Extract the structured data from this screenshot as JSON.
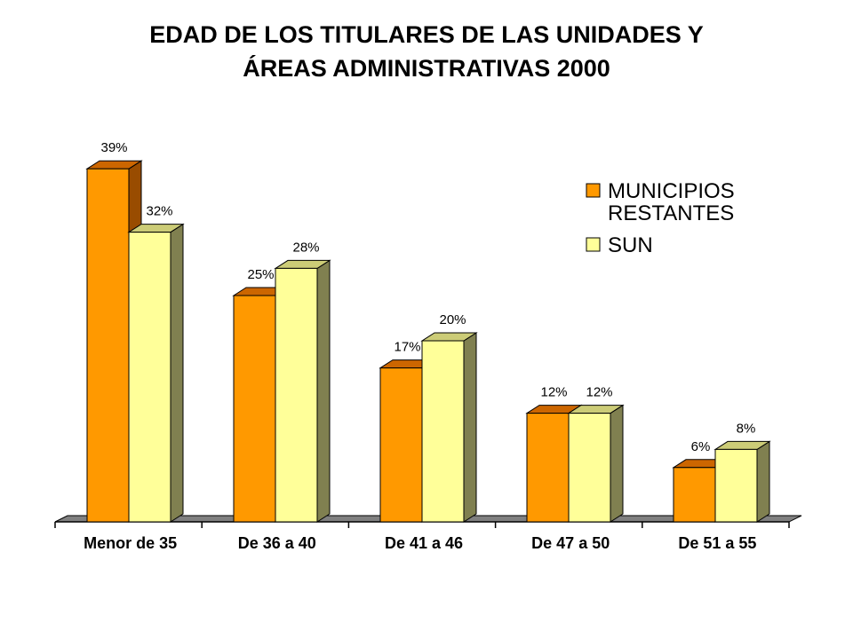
{
  "chart_data": {
    "type": "bar",
    "title_lines": [
      "EDAD DE LOS TITULARES DE LAS UNIDADES Y",
      "ÁREAS ADMINISTRATIVAS 2000"
    ],
    "categories": [
      "Menor de 35",
      "De 36 a 40",
      "De 41 a 46",
      "De 47 a 50",
      "De 51 a 55"
    ],
    "series": [
      {
        "name_lines": [
          "MUNICIPIOS",
          "RESTANTES"
        ],
        "values": [
          39,
          25,
          17,
          12,
          6
        ],
        "labels": [
          "39%",
          "25%",
          "17%",
          "12%",
          "6%"
        ],
        "color": "#FF9900",
        "top_color": "#CC6600",
        "side_color": "#994C00"
      },
      {
        "name_lines": [
          "SUN"
        ],
        "values": [
          32,
          28,
          20,
          12,
          8
        ],
        "labels": [
          "32%",
          "28%",
          "20%",
          "12%",
          "8%"
        ],
        "color": "#FFFF99",
        "top_color": "#CCCC77",
        "side_color": "#808050"
      }
    ],
    "ylim": [
      0,
      40
    ],
    "legend_position": "top-right",
    "grid": false
  }
}
